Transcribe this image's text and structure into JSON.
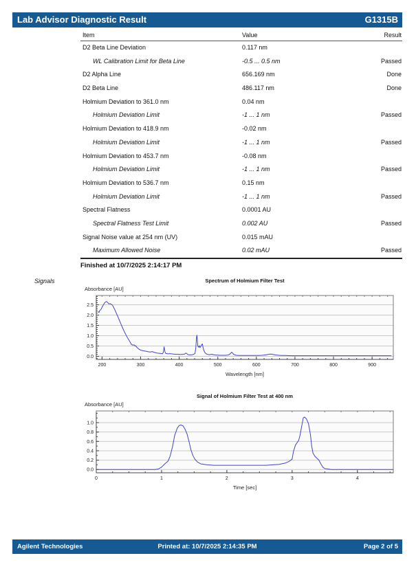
{
  "header": {
    "title": "Lab Advisor Diagnostic Result",
    "module": "G1315B"
  },
  "table": {
    "columns": [
      "Item",
      "Value",
      "Result"
    ],
    "rows": [
      {
        "item": "D2 Beta Line Deviation",
        "value": "0.117 nm",
        "result": "",
        "limit": false
      },
      {
        "item": "WL Calibration Limit for Beta Line",
        "value": "-0.5 ... 0.5 nm",
        "result": "Passed",
        "limit": true
      },
      {
        "item": "D2 Alpha Line",
        "value": "656.169 nm",
        "result": "Done",
        "limit": false
      },
      {
        "item": "D2 Beta Line",
        "value": "486.117 nm",
        "result": "Done",
        "limit": false
      },
      {
        "item": "Holmium Deviation to 361.0 nm",
        "value": "0.04 nm",
        "result": "",
        "limit": false
      },
      {
        "item": "Holmium Deviation Limit",
        "value": "-1 ... 1 nm",
        "result": "Passed",
        "limit": true
      },
      {
        "item": "Holmium Deviation to 418.9 nm",
        "value": "-0.02 nm",
        "result": "",
        "limit": false
      },
      {
        "item": "Holmium Deviation Limit",
        "value": "-1 ... 1 nm",
        "result": "Passed",
        "limit": true
      },
      {
        "item": "Holmium Deviation to 453.7 nm",
        "value": "-0.08 nm",
        "result": "",
        "limit": false
      },
      {
        "item": "Holmium Deviation Limit",
        "value": "-1 ... 1 nm",
        "result": "Passed",
        "limit": true
      },
      {
        "item": "Holmium Deviation to 536.7 nm",
        "value": "0.15 nm",
        "result": "",
        "limit": false
      },
      {
        "item": "Holmium Deviation Limit",
        "value": "-1 ... 1 nm",
        "result": "Passed",
        "limit": true
      },
      {
        "item": "Spectral Flatness",
        "value": "0.0001 AU",
        "result": "",
        "limit": false
      },
      {
        "item": "Spectral Flatness Test Limit",
        "value": "0.002 AU",
        "result": "Passed",
        "limit": true
      },
      {
        "item": "Signal Noise value at 254 nm (UV)",
        "value": "0.015 mAU",
        "result": "",
        "limit": false
      },
      {
        "item": "Maximum Allowed Noise",
        "value": "0.02 mAU",
        "result": "Passed",
        "limit": true
      }
    ]
  },
  "finished_text": "Finished at 10/7/2025 2:14:17 PM",
  "signals_label": "Signals",
  "footer": {
    "left": "Agilent Technologies",
    "center": "Printed at: 10/7/2025 2:14:35 PM",
    "right": "Page 2 of 5"
  },
  "colors": {
    "bar_blue": "#155a93",
    "line_blue": "#4343cf",
    "grid": "#c9c9c9",
    "frame": "#7a7a7a",
    "axis": "#444444",
    "plot_bg": "#fbfbfb"
  },
  "chart_data": [
    {
      "type": "line",
      "title": "Spectrum of Holmium Filter Test",
      "ylabel": "Absorbance [AU]",
      "xlabel": "Wavelength [nm]",
      "xlim": [
        185,
        955
      ],
      "ylim": [
        -0.15,
        2.95
      ],
      "x_ticks": [
        200,
        300,
        400,
        500,
        600,
        700,
        800,
        900
      ],
      "y_ticks": [
        0.0,
        0.5,
        1.0,
        1.5,
        2.0,
        2.5
      ],
      "x_minor_step": 20,
      "y_minor_step": 0.1,
      "x_decimals": 0,
      "y_decimals": 1,
      "grid": "horizontal",
      "legend": "none",
      "series": [
        {
          "name": "holmium-spectrum",
          "points": [
            [
              190,
              2.18
            ],
            [
              192,
              2.12
            ],
            [
              194,
              2.22
            ],
            [
              196,
              2.25
            ],
            [
              198,
              2.3
            ],
            [
              200,
              2.38
            ],
            [
              203,
              2.48
            ],
            [
              206,
              2.58
            ],
            [
              209,
              2.64
            ],
            [
              212,
              2.66
            ],
            [
              215,
              2.6
            ],
            [
              218,
              2.54
            ],
            [
              221,
              2.56
            ],
            [
              224,
              2.52
            ],
            [
              227,
              2.48
            ],
            [
              230,
              2.38
            ],
            [
              234,
              2.22
            ],
            [
              238,
              2.05
            ],
            [
              242,
              1.88
            ],
            [
              246,
              1.7
            ],
            [
              250,
              1.52
            ],
            [
              254,
              1.35
            ],
            [
              258,
              1.18
            ],
            [
              262,
              1.04
            ],
            [
              266,
              0.9
            ],
            [
              270,
              0.78
            ],
            [
              274,
              0.65
            ],
            [
              277,
              0.57
            ],
            [
              280,
              0.54
            ],
            [
              283,
              0.56
            ],
            [
              285,
              0.5
            ],
            [
              287,
              0.52
            ],
            [
              290,
              0.44
            ],
            [
              294,
              0.37
            ],
            [
              298,
              0.32
            ],
            [
              302,
              0.29
            ],
            [
              306,
              0.27
            ],
            [
              310,
              0.26
            ],
            [
              315,
              0.24
            ],
            [
              320,
              0.22
            ],
            [
              325,
              0.21
            ],
            [
              330,
              0.23
            ],
            [
              334,
              0.2
            ],
            [
              338,
              0.18
            ],
            [
              342,
              0.16
            ],
            [
              346,
              0.15
            ],
            [
              350,
              0.14
            ],
            [
              354,
              0.13
            ],
            [
              357,
              0.13
            ],
            [
              359,
              0.2
            ],
            [
              361,
              0.46
            ],
            [
              363,
              0.22
            ],
            [
              365,
              0.14
            ],
            [
              368,
              0.13
            ],
            [
              372,
              0.12
            ],
            [
              376,
              0.13
            ],
            [
              380,
              0.12
            ],
            [
              385,
              0.11
            ],
            [
              390,
              0.1
            ],
            [
              395,
              0.1
            ],
            [
              400,
              0.09
            ],
            [
              405,
              0.09
            ],
            [
              410,
              0.1
            ],
            [
              414,
              0.11
            ],
            [
              417,
              0.16
            ],
            [
              419,
              0.14
            ],
            [
              422,
              0.09
            ],
            [
              426,
              0.07
            ],
            [
              430,
              0.07
            ],
            [
              434,
              0.08
            ],
            [
              438,
              0.1
            ],
            [
              441,
              0.14
            ],
            [
              443,
              0.4
            ],
            [
              445,
              0.95
            ],
            [
              446,
              1.02
            ],
            [
              447,
              0.8
            ],
            [
              448,
              0.5
            ],
            [
              450,
              0.44
            ],
            [
              452,
              0.52
            ],
            [
              454,
              0.42
            ],
            [
              456,
              0.48
            ],
            [
              458,
              0.56
            ],
            [
              460,
              0.6
            ],
            [
              462,
              0.42
            ],
            [
              464,
              0.28
            ],
            [
              467,
              0.17
            ],
            [
              470,
              0.12
            ],
            [
              474,
              0.09
            ],
            [
              478,
              0.08
            ],
            [
              482,
              0.09
            ],
            [
              485,
              0.1
            ],
            [
              488,
              0.08
            ],
            [
              492,
              0.07
            ],
            [
              496,
              0.06
            ],
            [
              500,
              0.06
            ],
            [
              505,
              0.05
            ],
            [
              510,
              0.05
            ],
            [
              515,
              0.05
            ],
            [
              520,
              0.05
            ],
            [
              525,
              0.06
            ],
            [
              529,
              0.08
            ],
            [
              533,
              0.13
            ],
            [
              536,
              0.2
            ],
            [
              538,
              0.17
            ],
            [
              541,
              0.1
            ],
            [
              544,
              0.07
            ],
            [
              548,
              0.05
            ],
            [
              553,
              0.04
            ],
            [
              558,
              0.04
            ],
            [
              565,
              0.04
            ],
            [
              575,
              0.04
            ],
            [
              585,
              0.04
            ],
            [
              595,
              0.04
            ],
            [
              605,
              0.04
            ],
            [
              615,
              0.05
            ],
            [
              625,
              0.07
            ],
            [
              632,
              0.1
            ],
            [
              638,
              0.11
            ],
            [
              643,
              0.09
            ],
            [
              648,
              0.07
            ],
            [
              653,
              0.06
            ],
            [
              658,
              0.05
            ],
            [
              665,
              0.04
            ],
            [
              675,
              0.04
            ],
            [
              690,
              0.03
            ],
            [
              710,
              0.03
            ],
            [
              740,
              0.03
            ],
            [
              770,
              0.03
            ],
            [
              800,
              0.03
            ],
            [
              830,
              0.03
            ],
            [
              860,
              0.03
            ],
            [
              890,
              0.03
            ],
            [
              920,
              0.03
            ],
            [
              950,
              0.03
            ]
          ]
        }
      ]
    },
    {
      "type": "line",
      "title": "Signal of Holmium Filter Test at 400 nm",
      "ylabel": "Absorbance [AU]",
      "xlabel": "Time [sec]",
      "xlim": [
        0,
        4.55
      ],
      "ylim": [
        -0.07,
        1.25
      ],
      "x_ticks": [
        0,
        1,
        2,
        3,
        4
      ],
      "y_ticks": [
        0.0,
        0.2,
        0.4,
        0.6,
        0.8,
        1.0
      ],
      "x_minor_step": 0.25,
      "y_minor_step": 0.1,
      "x_decimals": 0,
      "y_decimals": 1,
      "grid": "horizontal",
      "legend": "none",
      "series": [
        {
          "name": "holmium-signal-400nm",
          "points": [
            [
              0,
              0
            ],
            [
              0.2,
              0
            ],
            [
              0.4,
              0
            ],
            [
              0.6,
              0
            ],
            [
              0.8,
              0
            ],
            [
              0.9,
              0
            ],
            [
              0.95,
              0.01
            ],
            [
              1.0,
              0.05
            ],
            [
              1.05,
              0.12
            ],
            [
              1.1,
              0.18
            ],
            [
              1.13,
              0.28
            ],
            [
              1.17,
              0.5
            ],
            [
              1.2,
              0.72
            ],
            [
              1.24,
              0.88
            ],
            [
              1.27,
              0.94
            ],
            [
              1.3,
              0.95
            ],
            [
              1.33,
              0.93
            ],
            [
              1.36,
              0.86
            ],
            [
              1.39,
              0.76
            ],
            [
              1.42,
              0.6
            ],
            [
              1.45,
              0.42
            ],
            [
              1.48,
              0.3
            ],
            [
              1.51,
              0.22
            ],
            [
              1.55,
              0.16
            ],
            [
              1.6,
              0.12
            ],
            [
              1.65,
              0.11
            ],
            [
              1.7,
              0.1
            ],
            [
              1.8,
              0.09
            ],
            [
              1.9,
              0.09
            ],
            [
              2.0,
              0.09
            ],
            [
              2.1,
              0.09
            ],
            [
              2.2,
              0.09
            ],
            [
              2.3,
              0.09
            ],
            [
              2.4,
              0.09
            ],
            [
              2.5,
              0.09
            ],
            [
              2.6,
              0.09
            ],
            [
              2.7,
              0.1
            ],
            [
              2.8,
              0.11
            ],
            [
              2.9,
              0.14
            ],
            [
              2.95,
              0.17
            ],
            [
              3.0,
              0.22
            ],
            [
              3.02,
              0.38
            ],
            [
              3.05,
              0.52
            ],
            [
              3.08,
              0.58
            ],
            [
              3.1,
              0.62
            ],
            [
              3.12,
              0.72
            ],
            [
              3.15,
              0.95
            ],
            [
              3.17,
              1.1
            ],
            [
              3.19,
              1.12
            ],
            [
              3.22,
              1.08
            ],
            [
              3.25,
              0.98
            ],
            [
              3.28,
              0.75
            ],
            [
              3.3,
              0.5
            ],
            [
              3.32,
              0.35
            ],
            [
              3.35,
              0.28
            ],
            [
              3.38,
              0.24
            ],
            [
              3.41,
              0.2
            ],
            [
              3.44,
              0.12
            ],
            [
              3.47,
              0.05
            ],
            [
              3.5,
              0.02
            ],
            [
              3.55,
              0.01
            ],
            [
              3.6,
              0
            ],
            [
              3.8,
              0
            ],
            [
              4.0,
              0
            ],
            [
              4.2,
              0
            ],
            [
              4.55,
              0
            ]
          ]
        }
      ]
    }
  ]
}
